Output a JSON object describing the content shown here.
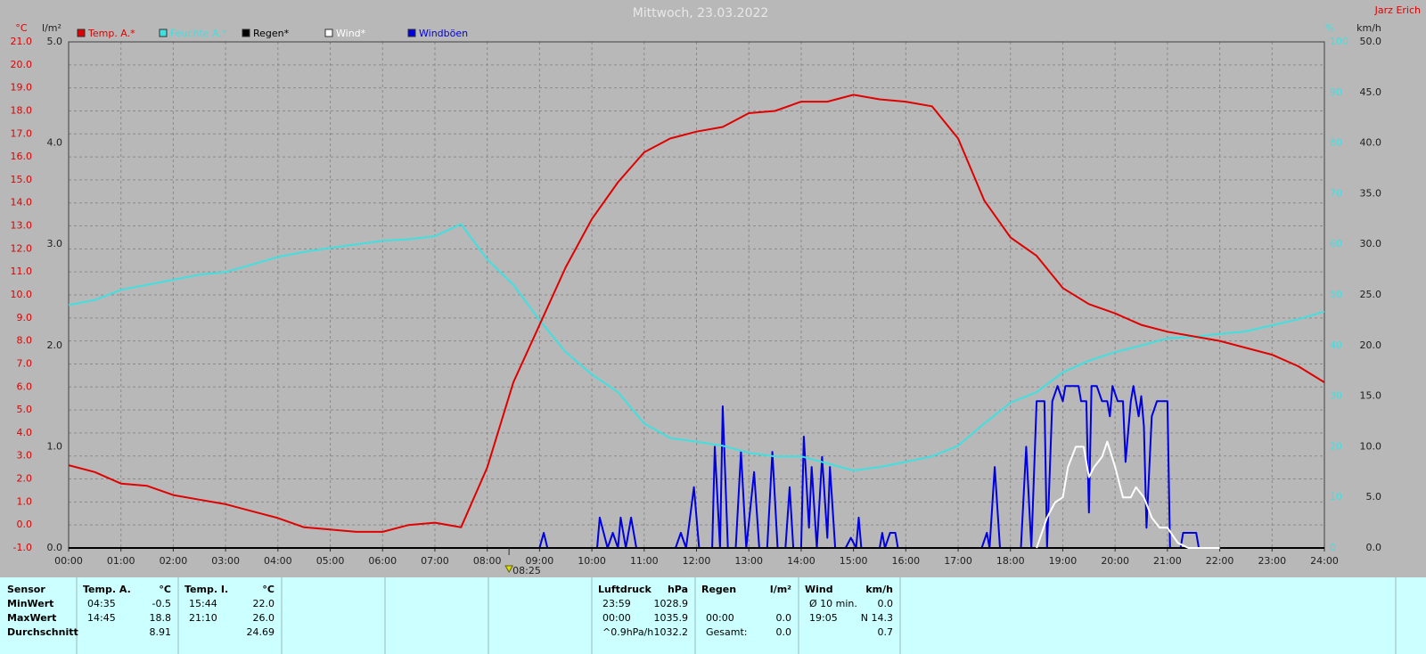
{
  "chart_data": {
    "type": "line",
    "title": "Mittwoch, 23.03.2022",
    "author": "Jarz Erich",
    "grid": true,
    "background": "#b8b8b8",
    "y_unit": "°C",
    "y2_unit": "l/m²",
    "y3_unit": "%",
    "y4_unit": "km/h",
    "xlim": [
      0,
      24
    ],
    "xticks": [
      {
        "value": 0,
        "label": "00:00"
      },
      {
        "value": 1,
        "label": "01:00"
      },
      {
        "value": 2,
        "label": "02:00"
      },
      {
        "value": 3,
        "label": "03:00"
      },
      {
        "value": 4,
        "label": "04:00"
      },
      {
        "value": 5,
        "label": "05:00"
      },
      {
        "value": 6,
        "label": "06:00"
      },
      {
        "value": 7,
        "label": "07:00"
      },
      {
        "value": 8,
        "label": "08:00"
      },
      {
        "value": 9,
        "label": "09:00"
      },
      {
        "value": 10,
        "label": "10:00"
      },
      {
        "value": 11,
        "label": "11:00"
      },
      {
        "value": 12,
        "label": "12:00"
      },
      {
        "value": 13,
        "label": "13:00"
      },
      {
        "value": 14,
        "label": "14:00"
      },
      {
        "value": 15,
        "label": "15:00"
      },
      {
        "value": 16,
        "label": "16:00"
      },
      {
        "value": 17,
        "label": "17:00"
      },
      {
        "value": 18,
        "label": "18:00"
      },
      {
        "value": 19,
        "label": "19:00"
      },
      {
        "value": 20,
        "label": "20:00"
      },
      {
        "value": 21,
        "label": "21:00"
      },
      {
        "value": 22,
        "label": "22:00"
      },
      {
        "value": 23,
        "label": "23:00"
      },
      {
        "value": 24,
        "label": "24:00"
      }
    ],
    "ylim": [
      -1,
      21
    ],
    "yticks": [
      {
        "value": -1,
        "label": "-1.0"
      },
      {
        "value": 0,
        "label": "0.0"
      },
      {
        "value": 1,
        "label": "1.0"
      },
      {
        "value": 2,
        "label": "2.0"
      },
      {
        "value": 3,
        "label": "3.0"
      },
      {
        "value": 4,
        "label": "4.0"
      },
      {
        "value": 5,
        "label": "5.0"
      },
      {
        "value": 6,
        "label": "6.0"
      },
      {
        "value": 7,
        "label": "7.0"
      },
      {
        "value": 8,
        "label": "8.0"
      },
      {
        "value": 9,
        "label": "9.0"
      },
      {
        "value": 10,
        "label": "10.0"
      },
      {
        "value": 11,
        "label": "11.0"
      },
      {
        "value": 12,
        "label": "12.0"
      },
      {
        "value": 13,
        "label": "13.0"
      },
      {
        "value": 14,
        "label": "14.0"
      },
      {
        "value": 15,
        "label": "15.0"
      },
      {
        "value": 16,
        "label": "16.0"
      },
      {
        "value": 17,
        "label": "17.0"
      },
      {
        "value": 18,
        "label": "18.0"
      },
      {
        "value": 19,
        "label": "19.0"
      },
      {
        "value": 20,
        "label": "20.0"
      },
      {
        "value": 21,
        "label": "21.0"
      }
    ],
    "y2lim": [
      0,
      5
    ],
    "y2ticks": [
      {
        "value": 0,
        "label": "0.0"
      },
      {
        "value": 1,
        "label": "1.0"
      },
      {
        "value": 2,
        "label": "2.0"
      },
      {
        "value": 3,
        "label": "3.0"
      },
      {
        "value": 4,
        "label": "4.0"
      },
      {
        "value": 5,
        "label": "5.0"
      }
    ],
    "y3lim": [
      0,
      100
    ],
    "y3ticks": [
      0,
      10,
      20,
      30,
      40,
      50,
      60,
      70,
      80,
      90,
      100
    ],
    "y4lim": [
      0,
      50
    ],
    "y4ticks": [
      {
        "value": 0,
        "label": "0.0"
      },
      {
        "value": 5,
        "label": "5.0"
      },
      {
        "value": 10,
        "label": "10.0"
      },
      {
        "value": 15,
        "label": "15.0"
      },
      {
        "value": 20,
        "label": "20.0"
      },
      {
        "value": 25,
        "label": "25.0"
      },
      {
        "value": 30,
        "label": "30.0"
      },
      {
        "value": 35,
        "label": "35.0"
      },
      {
        "value": 40,
        "label": "40.0"
      },
      {
        "value": 45,
        "label": "45.0"
      },
      {
        "value": 50,
        "label": "50.0"
      }
    ],
    "marker": {
      "x": 8.4167,
      "label": "08:25"
    },
    "series": [
      {
        "name": "Temp. A.*",
        "color": "#e00000",
        "axis": "y",
        "x": [
          0,
          0.5,
          1,
          1.5,
          2,
          2.5,
          3,
          3.5,
          4,
          4.5,
          5,
          5.5,
          6,
          6.5,
          7,
          7.5,
          8,
          8.5,
          9,
          9.5,
          10,
          10.5,
          11,
          11.5,
          12,
          12.5,
          13,
          13.5,
          14,
          14.5,
          15,
          15.5,
          16,
          16.5,
          17,
          17.5,
          18,
          18.5,
          19,
          19.5,
          20,
          20.5,
          21,
          21.5,
          22,
          22.5,
          23,
          23.5,
          24
        ],
        "values": [
          2.6,
          2.3,
          1.8,
          1.7,
          1.3,
          1.1,
          0.9,
          0.6,
          0.3,
          -0.1,
          -0.2,
          -0.3,
          -0.3,
          0.0,
          0.1,
          -0.1,
          2.5,
          6.2,
          8.7,
          11.2,
          13.3,
          14.9,
          16.2,
          16.8,
          17.1,
          17.3,
          17.9,
          18.0,
          18.4,
          18.4,
          18.7,
          18.5,
          18.4,
          18.2,
          16.8,
          14.1,
          12.5,
          11.7,
          10.3,
          9.6,
          9.2,
          8.7,
          8.4,
          8.2,
          8.0,
          7.7,
          7.4,
          6.9,
          6.2
        ]
      },
      {
        "name": "Feuchte A.*",
        "color": "#40e0e0",
        "axis": "y3",
        "x": [
          0,
          0.5,
          1,
          1.5,
          2,
          2.5,
          3,
          3.5,
          4,
          4.5,
          5,
          5.5,
          6,
          6.5,
          7,
          7.5,
          8,
          8.5,
          9,
          9.5,
          10,
          10.5,
          11,
          11.5,
          12,
          12.5,
          13,
          13.5,
          14,
          14.5,
          15,
          15.5,
          16,
          16.5,
          17,
          17.5,
          18,
          18.5,
          19,
          19.5,
          20,
          20.5,
          21,
          21.5,
          22,
          22.5,
          23,
          23.5,
          24
        ],
        "values": [
          48,
          49,
          51,
          52,
          53,
          54,
          54.5,
          56,
          57.5,
          58.5,
          59.3,
          60,
          60.7,
          61,
          61.6,
          64,
          57,
          52,
          45,
          38.7,
          34.3,
          30.8,
          24.6,
          21.7,
          21,
          20.2,
          18.8,
          18.1,
          18.1,
          16.7,
          15.3,
          16,
          17,
          18.1,
          20.2,
          24.6,
          28.7,
          30.8,
          34.7,
          37,
          38.7,
          40,
          41.4,
          41.7,
          42.3,
          42.8,
          44,
          45.2,
          46.7
        ]
      },
      {
        "name": "Regen*",
        "color": "#000000",
        "axis": "y2",
        "x": [
          0,
          24
        ],
        "values": [
          0,
          0
        ]
      },
      {
        "name": "Wind*",
        "color": "#ffffff",
        "axis": "y4",
        "x": [
          18.5,
          18.7,
          18.85,
          19.0,
          19.1,
          19.25,
          19.4,
          19.5,
          19.6,
          19.75,
          19.85,
          20.0,
          20.15,
          20.3,
          20.4,
          20.55,
          20.7,
          20.85,
          21.0,
          21.2,
          21.4,
          21.7,
          22.0
        ],
        "values": [
          0,
          3,
          4.5,
          5,
          8,
          10,
          10,
          7,
          8,
          9,
          10.5,
          8,
          5,
          5,
          6,
          5,
          3,
          2,
          2,
          0.5,
          0,
          0,
          0
        ]
      },
      {
        "name": "Windböen",
        "color": "#0000e0",
        "axis": "y4",
        "x": [
          9.0,
          9.08,
          9.15,
          10.1,
          10.15,
          10.3,
          10.4,
          10.5,
          10.55,
          10.65,
          10.75,
          10.85,
          11.6,
          11.7,
          11.8,
          11.95,
          12.05,
          12.3,
          12.35,
          12.45,
          12.5,
          12.6,
          12.75,
          12.85,
          12.95,
          13.1,
          13.2,
          13.35,
          13.45,
          13.55,
          13.7,
          13.78,
          13.85,
          14.0,
          14.05,
          14.15,
          14.2,
          14.3,
          14.4,
          14.5,
          14.55,
          14.65,
          14.85,
          14.95,
          15.05,
          15.1,
          15.15,
          15.5,
          15.55,
          15.6,
          15.7,
          15.8,
          15.85,
          17.45,
          17.55,
          17.6,
          17.7,
          17.8,
          18.2,
          18.3,
          18.4,
          18.5,
          18.65,
          18.7,
          18.8,
          18.9,
          19.0,
          19.05,
          19.3,
          19.35,
          19.45,
          19.5,
          19.55,
          19.65,
          19.75,
          19.85,
          19.9,
          19.95,
          20.05,
          20.15,
          20.2,
          20.3,
          20.35,
          20.45,
          20.5,
          20.55,
          20.6,
          20.7,
          20.8,
          21.0,
          21.05,
          21.25,
          21.3,
          21.55,
          21.6
        ],
        "values": [
          0,
          1.5,
          0,
          0,
          3,
          0,
          1.5,
          0,
          3,
          0,
          3,
          0,
          0,
          1.5,
          0,
          6,
          0,
          0,
          10,
          0,
          14,
          0,
          0,
          9.5,
          0,
          7.5,
          0,
          0,
          9.5,
          0,
          0,
          6,
          0,
          0,
          11,
          2,
          8,
          0,
          9,
          1,
          8,
          0,
          0,
          1,
          0,
          3,
          0,
          0,
          1.5,
          0,
          1.5,
          1.5,
          0,
          0,
          1.5,
          0,
          8,
          0,
          0,
          10,
          0,
          14.5,
          14.5,
          0,
          14.5,
          16,
          14.5,
          16,
          16,
          14.5,
          14.5,
          3.5,
          16,
          16,
          14.5,
          14.5,
          13,
          16,
          14.5,
          14.5,
          8.5,
          14.5,
          16,
          13,
          15,
          12,
          2,
          13,
          14.5,
          14.5,
          0,
          0,
          1.5,
          1.5,
          0
        ]
      }
    ]
  },
  "stats": {
    "header": "Sensor",
    "row_labels": [
      "MinWert",
      "MaxWert",
      "Durchschnitt"
    ],
    "panels": [
      {
        "title": "Temp. A.",
        "unit": "°C",
        "rows": [
          [
            "04:35",
            "-0.5"
          ],
          [
            "14:45",
            "18.8"
          ],
          [
            null,
            "8.91"
          ]
        ]
      },
      {
        "title": "Temp. I.",
        "unit": "°C",
        "rows": [
          [
            "15:44",
            "22.0"
          ],
          [
            "21:10",
            "26.0"
          ],
          [
            null,
            "24.69"
          ]
        ]
      },
      {
        "title": "Luftdruck",
        "unit": "hPa",
        "rows": [
          [
            "23:59",
            "1028.9"
          ],
          [
            "00:00",
            "1035.9"
          ],
          [
            "^0.9hPa/h",
            "1032.2"
          ]
        ]
      },
      {
        "title": "Regen",
        "unit": "l/m²",
        "rows": [
          [
            null,
            null
          ],
          [
            "00:00",
            "0.0"
          ],
          [
            "Gesamt:",
            "0.0"
          ]
        ]
      },
      {
        "title": "Wind",
        "unit": "km/h",
        "rows": [
          [
            "Ø 10 min.",
            "0.0"
          ],
          [
            "19:05",
            "N 14.3"
          ],
          [
            null,
            "0.7"
          ]
        ]
      }
    ]
  }
}
